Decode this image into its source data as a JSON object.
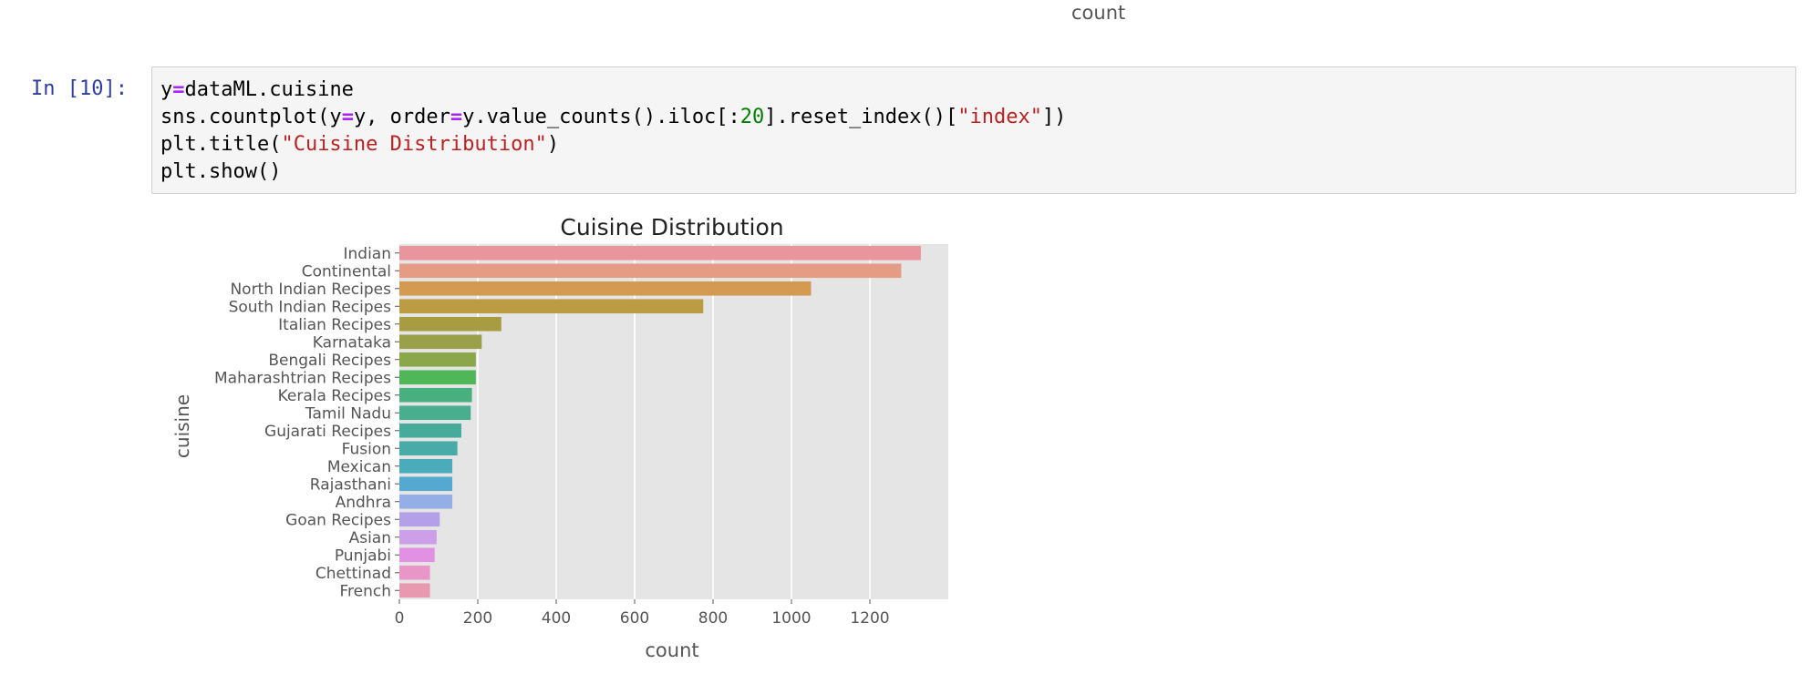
{
  "top_axis_label": "count",
  "cell": {
    "prompt": "In [10]:",
    "lines": [
      [
        {
          "t": "y"
        },
        {
          "t": "=",
          "c": "op"
        },
        {
          "t": "dataML.cuisine"
        }
      ],
      [
        {
          "t": "sns.countplot(y"
        },
        {
          "t": "=",
          "c": "op"
        },
        {
          "t": "y, order"
        },
        {
          "t": "=",
          "c": "op"
        },
        {
          "t": "y.value_counts().iloc[:"
        },
        {
          "t": "20",
          "c": "num"
        },
        {
          "t": "].reset_index()["
        },
        {
          "t": "\"index\"",
          "c": "str"
        },
        {
          "t": "])"
        }
      ],
      [
        {
          "t": "plt.title("
        },
        {
          "t": "\"Cuisine Distribution\"",
          "c": "str"
        },
        {
          "t": ")"
        }
      ],
      [
        {
          "t": "plt.show()"
        }
      ]
    ]
  },
  "chart_data": {
    "type": "bar",
    "orientation": "horizontal",
    "title": "Cuisine Distribution",
    "xlabel": "count",
    "ylabel": "cuisine",
    "xlim": [
      0,
      1400
    ],
    "xticks": [
      0,
      200,
      400,
      600,
      800,
      1000,
      1200
    ],
    "grid": true,
    "categories": [
      "Indian",
      "Continental",
      "North Indian Recipes",
      "South Indian Recipes",
      "Italian Recipes",
      "Karnataka",
      "Bengali Recipes",
      "Maharashtrian Recipes",
      "Kerala Recipes",
      "Tamil Nadu",
      "Gujarati Recipes",
      "Fusion",
      "Mexican",
      "Rajasthani",
      "Andhra",
      "Goan Recipes",
      "Asian",
      "Punjabi",
      "Chettinad",
      "French"
    ],
    "values": [
      1330,
      1280,
      1050,
      775,
      260,
      210,
      195,
      195,
      185,
      182,
      158,
      148,
      135,
      135,
      135,
      103,
      95,
      90,
      78,
      78
    ],
    "colors": [
      "#e8959d",
      "#e59c84",
      "#d49a52",
      "#bc9c42",
      "#a89c43",
      "#99a049",
      "#8aa84a",
      "#4fb757",
      "#47b07e",
      "#48ae8d",
      "#47ab9c",
      "#48aba8",
      "#4aacba",
      "#55a9d0",
      "#94aee6",
      "#b3a0e9",
      "#cc9fe8",
      "#e190e3",
      "#e896c8",
      "#e899b0"
    ]
  }
}
